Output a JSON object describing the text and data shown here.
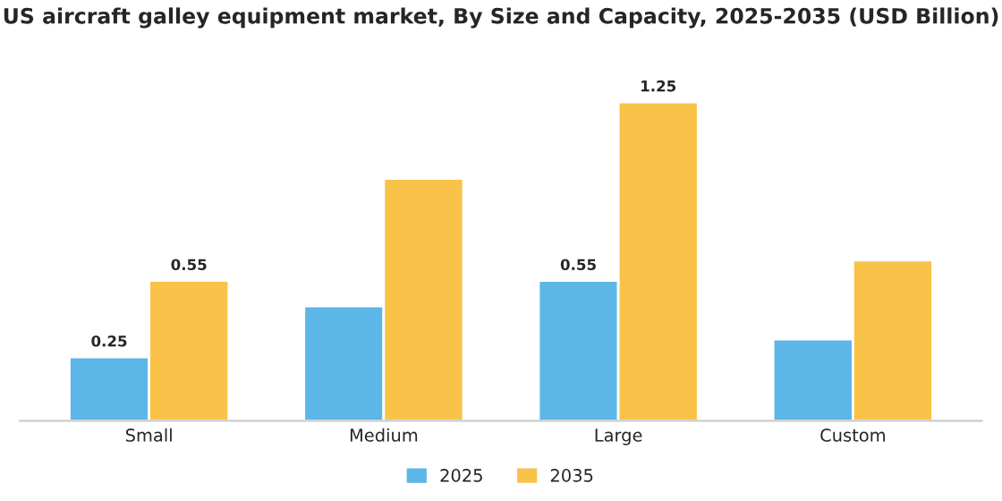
{
  "chart_data": {
    "type": "bar",
    "title": "US aircraft galley equipment market, By Size and Capacity, 2025-2035 (USD Billion)",
    "categories": [
      "Small",
      "Medium",
      "Large",
      "Custom"
    ],
    "series": [
      {
        "name": "2025",
        "color": "#5db6e8",
        "values": [
          0.25,
          0.45,
          0.55,
          0.32
        ],
        "value_labels": [
          "0.25",
          null,
          "0.55",
          null
        ]
      },
      {
        "name": "2035",
        "color": "#f9c34a",
        "values": [
          0.55,
          0.95,
          1.25,
          0.63
        ],
        "value_labels": [
          "0.55",
          null,
          "1.25",
          null
        ]
      }
    ],
    "legend": "bottom",
    "grid": false
  }
}
